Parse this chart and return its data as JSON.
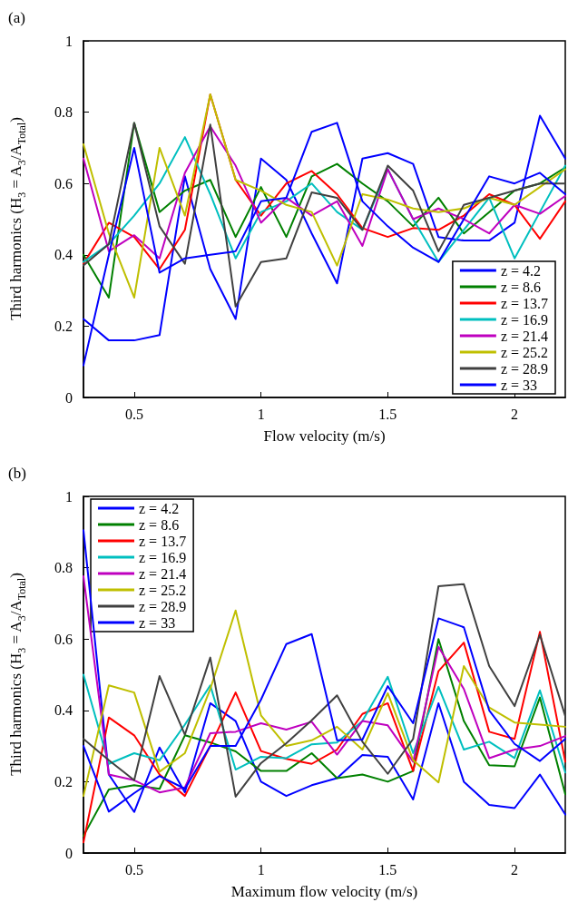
{
  "chart_data": [
    {
      "type": "line",
      "title": "(a)",
      "xlabel": "Flow velocity (m/s)",
      "ylabel": "Third harmonics (H$_{3}$ = A$_{3}$/A$_{Total}$)",
      "x": [
        0.3,
        0.4,
        0.5,
        0.6,
        0.7,
        0.8,
        0.9,
        1.0,
        1.1,
        1.2,
        1.3,
        1.4,
        1.5,
        1.6,
        1.7,
        1.8,
        1.9,
        2.0,
        2.1,
        2.2
      ],
      "xlim": [
        0.3,
        2.2
      ],
      "xticks": [
        0.5,
        1,
        1.5,
        2
      ],
      "ylim": [
        0,
        1
      ],
      "yticks": [
        0,
        0.2,
        0.4,
        0.6,
        0.8,
        1
      ],
      "grid": false,
      "legend": "bottom right",
      "marker": "none",
      "line_style": "solid",
      "series": [
        {
          "name": "z = 4.2",
          "color": "#0000ff",
          "values": [
            0.22,
            0.16,
            0.16,
            0.175,
            0.62,
            0.36,
            0.22,
            0.67,
            0.61,
            0.46,
            0.32,
            0.67,
            0.685,
            0.655,
            0.45,
            0.44,
            0.44,
            0.49,
            0.79,
            0.67
          ]
        },
        {
          "name": "z = 8.6",
          "color": "#008000",
          "values": [
            0.4,
            0.28,
            0.77,
            0.52,
            0.58,
            0.61,
            0.45,
            0.59,
            0.45,
            0.62,
            0.655,
            0.6,
            0.55,
            0.48,
            0.56,
            0.46,
            0.52,
            0.58,
            0.6,
            0.645
          ]
        },
        {
          "name": "z = 13.7",
          "color": "#ff0000",
          "values": [
            0.375,
            0.49,
            0.45,
            0.36,
            0.47,
            0.85,
            0.61,
            0.51,
            0.6,
            0.635,
            0.57,
            0.475,
            0.45,
            0.475,
            0.47,
            0.51,
            0.57,
            0.54,
            0.445,
            0.55
          ]
        },
        {
          "name": "z = 16.9",
          "color": "#00bfbf",
          "values": [
            0.38,
            0.43,
            0.51,
            0.6,
            0.73,
            0.57,
            0.39,
            0.52,
            0.55,
            0.6,
            0.52,
            0.47,
            0.64,
            0.5,
            0.38,
            0.47,
            0.56,
            0.39,
            0.52,
            0.65
          ]
        },
        {
          "name": "z = 21.4",
          "color": "#bf00bf",
          "values": [
            0.67,
            0.41,
            0.455,
            0.39,
            0.63,
            0.76,
            0.65,
            0.49,
            0.56,
            0.51,
            0.55,
            0.425,
            0.64,
            0.5,
            0.53,
            0.5,
            0.46,
            0.54,
            0.515,
            0.565
          ]
        },
        {
          "name": "z = 25.2",
          "color": "#bfbf00",
          "values": [
            0.71,
            0.46,
            0.28,
            0.7,
            0.51,
            0.85,
            0.61,
            0.58,
            0.54,
            0.52,
            0.37,
            0.57,
            0.555,
            0.53,
            0.52,
            0.53,
            0.56,
            0.54,
            0.59,
            0.64
          ]
        },
        {
          "name": "z = 28.9",
          "color": "#404040",
          "values": [
            0.37,
            0.43,
            0.77,
            0.48,
            0.375,
            0.765,
            0.255,
            0.38,
            0.39,
            0.575,
            0.56,
            0.47,
            0.65,
            0.58,
            0.41,
            0.54,
            0.56,
            0.58,
            0.6,
            0.6
          ]
        },
        {
          "name": "z = 33",
          "color": "#0000ff",
          "values": [
            0.09,
            0.4,
            0.7,
            0.35,
            0.39,
            0.4,
            0.41,
            0.55,
            0.56,
            0.745,
            0.77,
            0.55,
            0.48,
            0.42,
            0.38,
            0.5,
            0.62,
            0.6,
            0.63,
            0.57
          ]
        }
      ]
    },
    {
      "type": "line",
      "title": "(b)",
      "xlabel": "Maximum flow velocity (m/s)",
      "ylabel": "Third harmonics (H$_{3}$ = A$_{3}$/A$_{Total}$)",
      "x": [
        0.3,
        0.4,
        0.5,
        0.6,
        0.7,
        0.8,
        0.9,
        1.0,
        1.1,
        1.2,
        1.3,
        1.4,
        1.5,
        1.6,
        1.7,
        1.8,
        1.9,
        2.0,
        2.1,
        2.2
      ],
      "xlim": [
        0.3,
        2.2
      ],
      "xticks": [
        0.5,
        1,
        1.5,
        2
      ],
      "ylim": [
        0,
        1
      ],
      "yticks": [
        0,
        0.2,
        0.4,
        0.6,
        0.8,
        1
      ],
      "grid": false,
      "legend": "top left",
      "marker": "none",
      "line_style": "solid",
      "series": [
        {
          "name": "z = 4.2",
          "color": "#0000ff",
          "values": [
            0.905,
            0.22,
            0.115,
            0.296,
            0.17,
            0.42,
            0.37,
            0.2,
            0.16,
            0.19,
            0.21,
            0.275,
            0.27,
            0.15,
            0.42,
            0.2,
            0.135,
            0.126,
            0.22,
            0.108
          ]
        },
        {
          "name": "z = 8.6",
          "color": "#008000",
          "values": [
            0.048,
            0.178,
            0.19,
            0.18,
            0.33,
            0.31,
            0.285,
            0.23,
            0.23,
            0.28,
            0.21,
            0.22,
            0.2,
            0.23,
            0.6,
            0.37,
            0.246,
            0.243,
            0.436,
            0.165
          ]
        },
        {
          "name": "z = 13.7",
          "color": "#ff0000",
          "values": [
            0.03,
            0.38,
            0.33,
            0.22,
            0.16,
            0.3,
            0.45,
            0.286,
            0.264,
            0.25,
            0.29,
            0.39,
            0.42,
            0.23,
            0.51,
            0.59,
            0.34,
            0.32,
            0.62,
            0.256
          ]
        },
        {
          "name": "z = 16.9",
          "color": "#00bfbf",
          "values": [
            0.5,
            0.25,
            0.28,
            0.26,
            0.36,
            0.47,
            0.234,
            0.27,
            0.266,
            0.305,
            0.31,
            0.37,
            0.494,
            0.28,
            0.466,
            0.29,
            0.312,
            0.266,
            0.456,
            0.226
          ]
        },
        {
          "name": "z = 21.4",
          "color": "#bf00bf",
          "values": [
            0.776,
            0.22,
            0.204,
            0.17,
            0.184,
            0.336,
            0.34,
            0.364,
            0.346,
            0.368,
            0.276,
            0.37,
            0.358,
            0.256,
            0.578,
            0.46,
            0.266,
            0.29,
            0.3,
            0.328
          ]
        },
        {
          "name": "z = 25.2",
          "color": "#bfbf00",
          "values": [
            0.16,
            0.47,
            0.45,
            0.228,
            0.28,
            0.46,
            0.68,
            0.386,
            0.3,
            0.316,
            0.354,
            0.29,
            0.448,
            0.26,
            0.198,
            0.524,
            0.408,
            0.366,
            0.36,
            0.354
          ]
        },
        {
          "name": "z = 28.9",
          "color": "#404040",
          "values": [
            0.32,
            0.26,
            0.204,
            0.496,
            0.332,
            0.548,
            0.158,
            0.252,
            0.308,
            0.372,
            0.442,
            0.312,
            0.222,
            0.32,
            0.748,
            0.754,
            0.524,
            0.412,
            0.612,
            0.384
          ]
        },
        {
          "name": "z = 33",
          "color": "#0000ff",
          "values": [
            0.3,
            0.116,
            0.168,
            0.216,
            0.18,
            0.3,
            0.3,
            0.43,
            0.586,
            0.614,
            0.316,
            0.318,
            0.468,
            0.364,
            0.658,
            0.633,
            0.4,
            0.306,
            0.258,
            0.32
          ]
        }
      ]
    }
  ]
}
